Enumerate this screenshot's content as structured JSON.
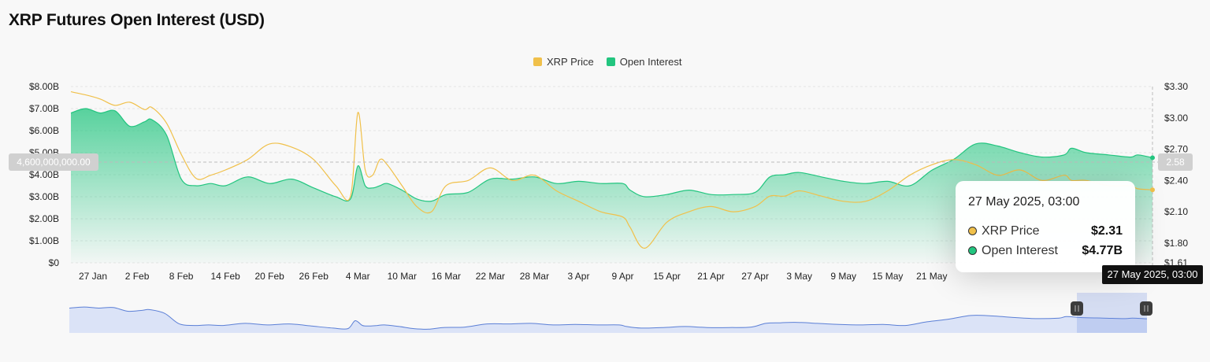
{
  "page": {
    "title": "XRP Futures Open Interest (USD)"
  },
  "colors": {
    "price": "#f0c04a",
    "oi": "#22c57f",
    "navigator": "#5b7fd6"
  },
  "crosshair": {
    "left_value_label": "4,600,000,000.00",
    "right_value_label": "2.58",
    "date_label": "27 May 2025, 03:00"
  },
  "tooltip": {
    "date": "27 May 2025, 03:00",
    "rows": [
      {
        "label": "XRP Price",
        "value": "$2.31"
      },
      {
        "label": "Open Interest",
        "value": "$4.77B"
      }
    ]
  },
  "chart_data": {
    "type": "area",
    "title": "XRP Futures Open Interest (USD)",
    "legend": {
      "position": "top-center",
      "entries": [
        "XRP Price",
        "Open Interest"
      ]
    },
    "y_left": {
      "ticks": [
        "$8.00B",
        "$7.00B",
        "$6.00B",
        "$5.00B",
        "$4.00B",
        "$3.00B",
        "$2.00B",
        "$1.00B",
        "$0"
      ],
      "range": [
        0,
        8
      ]
    },
    "y_right": {
      "ticks": [
        "$3.30",
        "$3.00",
        "$2.70",
        "$2.40",
        "$2.10",
        "$1.80",
        "$1.61"
      ],
      "range": [
        1.61,
        3.3
      ]
    },
    "x_ticks": [
      "27 Jan",
      "2 Feb",
      "8 Feb",
      "14 Feb",
      "20 Feb",
      "26 Feb",
      "4 Mar",
      "10 Mar",
      "16 Mar",
      "22 Mar",
      "28 Mar",
      "3 Apr",
      "9 Apr",
      "15 Apr",
      "21 Apr",
      "27 Apr",
      "3 May",
      "9 May",
      "15 May",
      "21 May"
    ],
    "x": [
      -3,
      -1,
      1,
      3,
      5,
      7,
      8,
      10,
      12,
      14,
      16,
      18,
      21,
      24,
      27,
      30,
      33,
      35,
      36,
      37,
      38,
      39,
      40,
      42,
      44,
      46,
      48,
      51,
      54,
      57,
      60,
      63,
      66,
      69,
      72,
      73,
      75,
      78,
      81,
      84,
      87,
      90,
      92,
      94,
      96,
      99,
      102,
      105,
      108,
      111,
      114,
      117,
      120,
      123,
      126,
      129,
      132,
      133,
      135,
      138,
      141,
      142,
      144
    ],
    "series": [
      {
        "name": "Open Interest",
        "axis": "left",
        "unit": "B USD",
        "values": [
          6.8,
          7.0,
          6.8,
          6.9,
          6.2,
          6.4,
          6.5,
          5.8,
          3.8,
          3.5,
          3.6,
          3.5,
          3.9,
          3.6,
          3.8,
          3.4,
          3.0,
          2.9,
          4.4,
          3.5,
          3.4,
          3.5,
          3.6,
          3.3,
          2.9,
          2.8,
          3.1,
          3.2,
          3.8,
          3.8,
          3.9,
          3.6,
          3.7,
          3.6,
          3.6,
          3.3,
          3.0,
          3.1,
          3.3,
          3.1,
          3.1,
          3.2,
          3.9,
          4.0,
          4.1,
          3.9,
          3.7,
          3.6,
          3.7,
          3.5,
          4.2,
          4.7,
          5.4,
          5.3,
          5.0,
          4.8,
          4.9,
          5.2,
          5.0,
          4.9,
          4.8,
          4.9,
          4.77
        ]
      },
      {
        "name": "XRP Price",
        "axis": "right",
        "unit": "USD",
        "values": [
          3.25,
          3.22,
          3.18,
          3.12,
          3.15,
          3.08,
          3.1,
          2.95,
          2.65,
          2.42,
          2.45,
          2.5,
          2.6,
          2.75,
          2.72,
          2.6,
          2.35,
          2.25,
          3.05,
          2.5,
          2.45,
          2.6,
          2.55,
          2.35,
          2.15,
          2.1,
          2.35,
          2.4,
          2.52,
          2.4,
          2.45,
          2.3,
          2.2,
          2.1,
          2.05,
          1.95,
          1.75,
          2.0,
          2.1,
          2.15,
          2.1,
          2.15,
          2.25,
          2.25,
          2.3,
          2.25,
          2.2,
          2.2,
          2.3,
          2.45,
          2.55,
          2.6,
          2.55,
          2.45,
          2.5,
          2.4,
          2.45,
          2.4,
          2.4,
          2.35,
          2.35,
          2.32,
          2.31
        ]
      }
    ],
    "grid": true
  }
}
